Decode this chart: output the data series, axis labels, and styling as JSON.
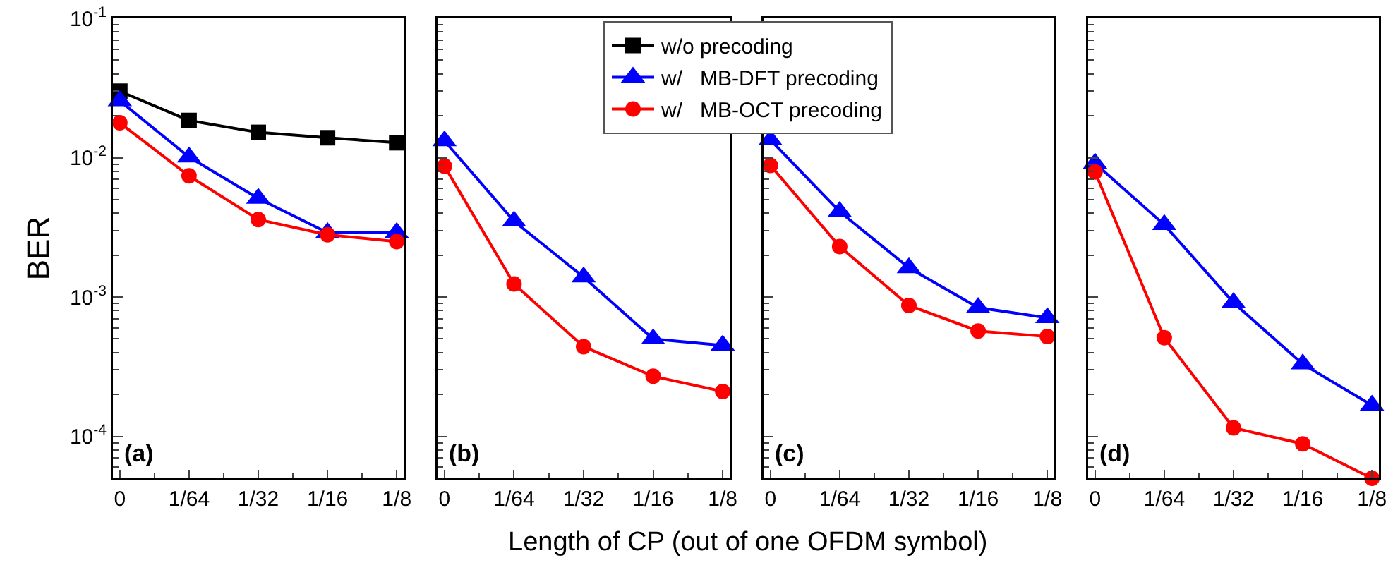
{
  "chart_data": [
    {
      "type": "line",
      "ylabel": "BER",
      "xlabel": "Length of CP (out of one OFDM symbol)",
      "categories": [
        "0",
        "1/64",
        "1/32",
        "1/16",
        "1/8"
      ],
      "log": "y",
      "ylim": [
        5e-05,
        0.1
      ],
      "yticks": [
        {
          "value": 0.1,
          "label": "10$^{-1}$"
        },
        {
          "value": 0.01,
          "label": "10$^{-2}$"
        },
        {
          "value": 0.001,
          "label": "10$^{-3}$"
        },
        {
          "value": 0.0001,
          "label": "10$^{-4}$"
        }
      ],
      "grid": false,
      "legend": "top",
      "annotations": [
        "(a)"
      ],
      "series": [
        {
          "name": "w/o precoding",
          "color": "#000000",
          "marker": "square",
          "values": [
            0.03,
            0.0185,
            0.0152,
            0.0139,
            0.0128
          ]
        },
        {
          "name": "w/   MB-DFT precoding",
          "color": "#0000ff",
          "marker": "triangle",
          "values": [
            0.0256,
            0.0101,
            0.0051,
            0.0029,
            0.0029
          ]
        },
        {
          "name": "w/   MB-OCT precoding",
          "color": "#ff0000",
          "marker": "circle",
          "values": [
            0.0178,
            0.0074,
            0.0036,
            0.0028,
            0.0025
          ]
        }
      ]
    },
    {
      "type": "line",
      "categories": [
        "0",
        "1/64",
        "1/32",
        "1/16",
        "1/8"
      ],
      "log": "y",
      "ylim": [
        5e-05,
        0.1
      ],
      "yticks": [
        {
          "value": 0.1,
          "label": null
        },
        {
          "value": 0.01,
          "label": null
        },
        {
          "value": 0.001,
          "label": null
        },
        {
          "value": 0.0001,
          "label": null
        }
      ],
      "tick_labels": "x",
      "grid": false,
      "annotations": [
        "(b)"
      ],
      "series": [
        {
          "color": "#0000ff",
          "marker": "triangle",
          "values": [
            0.0132,
            0.0035,
            0.00139,
            0.0005,
            0.00045
          ]
        },
        {
          "color": "#ff0000",
          "marker": "circle",
          "values": [
            0.0087,
            0.00124,
            0.00044,
            0.00027,
            0.00021
          ]
        }
      ]
    },
    {
      "type": "line",
      "categories": [
        "0",
        "1/64",
        "1/32",
        "1/16",
        "1/8"
      ],
      "log": "y",
      "ylim": [
        5e-05,
        0.1
      ],
      "yticks": [
        {
          "value": 0.1,
          "label": null
        },
        {
          "value": 0.01,
          "label": null
        },
        {
          "value": 0.001,
          "label": null
        },
        {
          "value": 0.0001,
          "label": null
        }
      ],
      "tick_labels": "x",
      "grid": false,
      "annotations": [
        "(c)"
      ],
      "series": [
        {
          "color": "#0000ff",
          "marker": "triangle",
          "values": [
            0.0134,
            0.0041,
            0.00162,
            0.00084,
            0.00071
          ]
        },
        {
          "color": "#ff0000",
          "marker": "circle",
          "values": [
            0.0088,
            0.0023,
            0.00087,
            0.00057,
            0.00052
          ]
        }
      ]
    },
    {
      "type": "line",
      "categories": [
        "0",
        "1/64",
        "1/32",
        "1/16",
        "1/8"
      ],
      "log": "y",
      "ylim": [
        5e-05,
        0.1
      ],
      "yticks": [
        {
          "value": 0.1,
          "label": null
        },
        {
          "value": 0.01,
          "label": null
        },
        {
          "value": 0.001,
          "label": null
        },
        {
          "value": 0.0001,
          "label": null
        }
      ],
      "tick_labels": "x",
      "grid": false,
      "annotations": [
        "(d)"
      ],
      "series": [
        {
          "color": "#0000ff",
          "marker": "triangle",
          "values": [
            0.0091,
            0.0033,
            0.00091,
            0.00033,
            0.000167
          ]
        },
        {
          "color": "#ff0000",
          "marker": "circle",
          "values": [
            0.0079,
            0.00051,
            0.000115,
            8.83e-05,
            5e-05
          ]
        }
      ]
    }
  ]
}
